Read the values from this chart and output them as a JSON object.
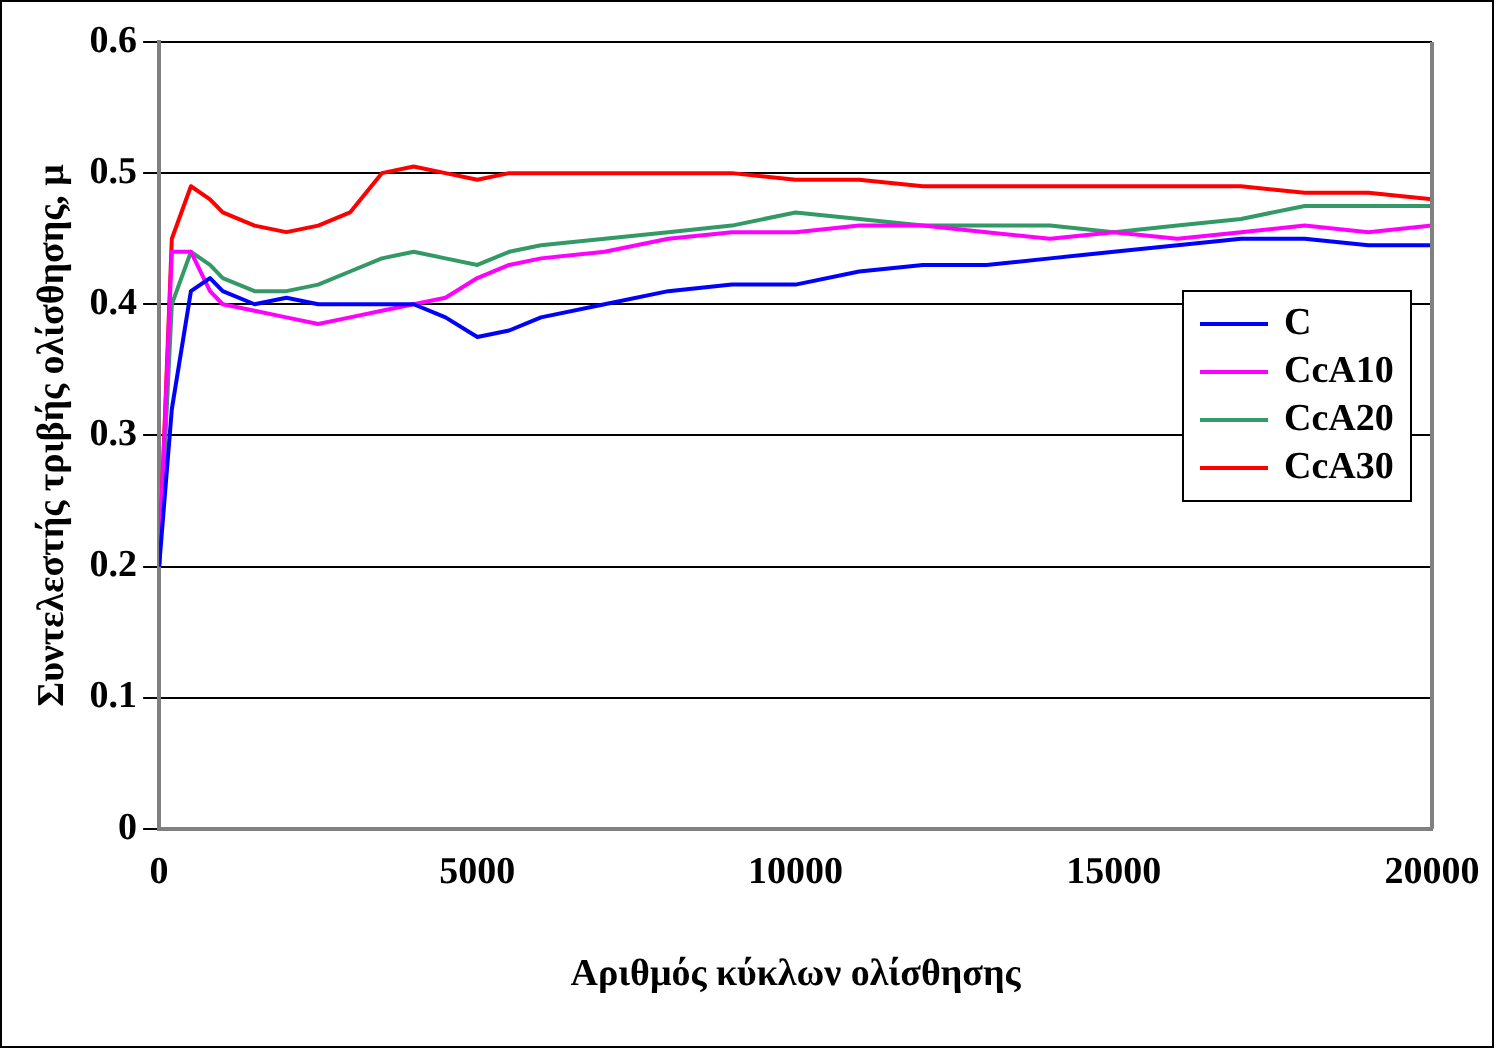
{
  "chart_data": {
    "type": "line",
    "xlabel": "Αριθμός κύκλων ολίσθησης",
    "ylabel": "Συντελεστής τριβής ολίσθησης, μ",
    "xlim": [
      0,
      20000
    ],
    "xticks": [
      0,
      5000,
      10000,
      15000,
      20000
    ],
    "ylim": [
      0,
      0.6
    ],
    "yticks": [
      0,
      0.1,
      0.2,
      0.3,
      0.4,
      0.5,
      0.6
    ],
    "grid": "y",
    "legend": "right",
    "marker": "none",
    "line_style": "solid",
    "x": [
      0,
      200,
      500,
      800,
      1000,
      1500,
      2000,
      2500,
      3000,
      3500,
      4000,
      4500,
      5000,
      5500,
      6000,
      7000,
      8000,
      9000,
      10000,
      11000,
      12000,
      13000,
      14000,
      15000,
      16000,
      17000,
      18000,
      19000,
      20000
    ],
    "series": [
      {
        "name": "C",
        "color": "#0000ff",
        "values": [
          0.2,
          0.32,
          0.41,
          0.42,
          0.41,
          0.4,
          0.405,
          0.4,
          0.4,
          0.4,
          0.4,
          0.39,
          0.375,
          0.38,
          0.39,
          0.4,
          0.41,
          0.415,
          0.415,
          0.425,
          0.43,
          0.43,
          0.435,
          0.44,
          0.445,
          0.45,
          0.45,
          0.445,
          0.445
        ]
      },
      {
        "name": "CcA10",
        "color": "#ff00ff",
        "values": [
          0.2,
          0.44,
          0.44,
          0.41,
          0.4,
          0.395,
          0.39,
          0.385,
          0.39,
          0.395,
          0.4,
          0.405,
          0.42,
          0.43,
          0.435,
          0.44,
          0.45,
          0.455,
          0.455,
          0.46,
          0.46,
          0.455,
          0.45,
          0.455,
          0.45,
          0.455,
          0.46,
          0.455,
          0.46
        ]
      },
      {
        "name": "CcA20",
        "color": "#339966",
        "values": [
          0.2,
          0.4,
          0.44,
          0.43,
          0.42,
          0.41,
          0.41,
          0.415,
          0.425,
          0.435,
          0.44,
          0.435,
          0.43,
          0.44,
          0.445,
          0.45,
          0.455,
          0.46,
          0.47,
          0.465,
          0.46,
          0.46,
          0.46,
          0.455,
          0.46,
          0.465,
          0.475,
          0.475,
          0.475
        ]
      },
      {
        "name": "CcA30",
        "color": "#ff0000",
        "values": [
          0.2,
          0.45,
          0.49,
          0.48,
          0.47,
          0.46,
          0.455,
          0.46,
          0.47,
          0.5,
          0.505,
          0.5,
          0.495,
          0.5,
          0.5,
          0.5,
          0.5,
          0.5,
          0.495,
          0.495,
          0.49,
          0.49,
          0.49,
          0.49,
          0.49,
          0.49,
          0.485,
          0.485,
          0.48
        ]
      }
    ]
  }
}
